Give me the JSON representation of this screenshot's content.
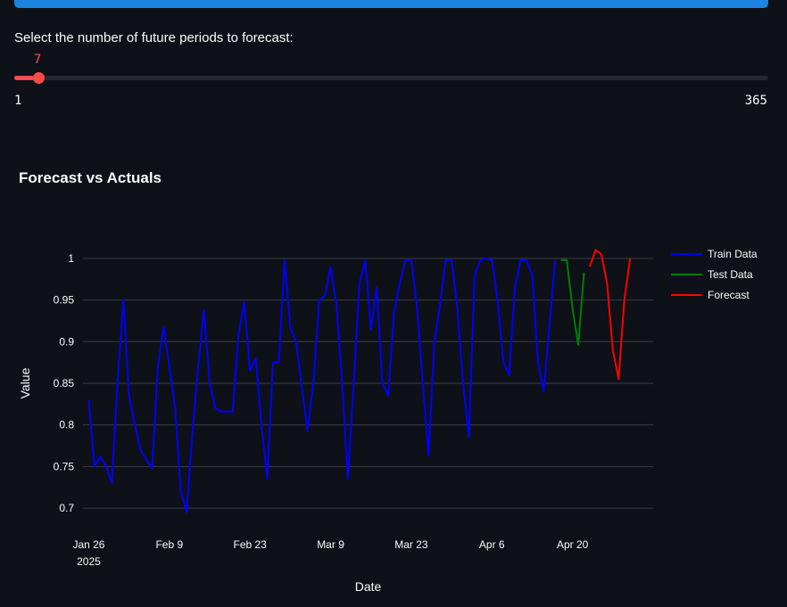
{
  "slider": {
    "label": "Select the number of future periods to forecast:",
    "value": 7,
    "min": 1,
    "max": 365,
    "min_label": "1",
    "max_label": "365",
    "value_label": "7"
  },
  "chart_title": "Forecast vs Actuals",
  "colors": {
    "train": "#0000ff",
    "test": "#008000",
    "forecast": "#ff0000",
    "accent": "#ff4b4b",
    "progress": "#1c83e1"
  },
  "chart_data": {
    "type": "line",
    "xlabel": "Date",
    "ylabel": "Value",
    "xlim": [
      "2025-01-25",
      "2025-05-04"
    ],
    "ylim": [
      0.668,
      1.032
    ],
    "yticks": [
      0.7,
      0.75,
      0.8,
      0.85,
      0.9,
      0.95,
      1
    ],
    "ytick_labels": [
      "0.7",
      "0.75",
      "0.8",
      "0.85",
      "0.9",
      "0.95",
      "1"
    ],
    "xticks": [
      "2025-01-26",
      "2025-02-09",
      "2025-02-23",
      "2025-03-09",
      "2025-03-23",
      "2025-04-06",
      "2025-04-20"
    ],
    "xtick_labels": [
      "Jan 26",
      "Feb 9",
      "Feb 23",
      "Mar 9",
      "Mar 23",
      "Apr 6",
      "Apr 20"
    ],
    "xtick_year": "2025",
    "grid": true,
    "legend_position": "top-right",
    "series": [
      {
        "name": "Train Data",
        "color": "#0000ff",
        "x": [
          "2025-01-26",
          "2025-01-27",
          "2025-01-28",
          "2025-01-29",
          "2025-01-30",
          "2025-01-31",
          "2025-02-01",
          "2025-02-02",
          "2025-02-03",
          "2025-02-04",
          "2025-02-05",
          "2025-02-06",
          "2025-02-07",
          "2025-02-08",
          "2025-02-09",
          "2025-02-10",
          "2025-02-11",
          "2025-02-12",
          "2025-02-13",
          "2025-02-14",
          "2025-02-15",
          "2025-02-16",
          "2025-02-17",
          "2025-02-18",
          "2025-02-19",
          "2025-02-20",
          "2025-02-21",
          "2025-02-22",
          "2025-02-23",
          "2025-02-24",
          "2025-02-25",
          "2025-02-26",
          "2025-02-27",
          "2025-02-28",
          "2025-03-01",
          "2025-03-02",
          "2025-03-03",
          "2025-03-04",
          "2025-03-05",
          "2025-03-06",
          "2025-03-07",
          "2025-03-08",
          "2025-03-09",
          "2025-03-10",
          "2025-03-11",
          "2025-03-12",
          "2025-03-13",
          "2025-03-14",
          "2025-03-15",
          "2025-03-16",
          "2025-03-17",
          "2025-03-18",
          "2025-03-19",
          "2025-03-20",
          "2025-03-21",
          "2025-03-22",
          "2025-03-23",
          "2025-03-24",
          "2025-03-25",
          "2025-03-26",
          "2025-03-27",
          "2025-03-28",
          "2025-03-29",
          "2025-03-30",
          "2025-03-31",
          "2025-04-01",
          "2025-04-02",
          "2025-04-03",
          "2025-04-04",
          "2025-04-05",
          "2025-04-06",
          "2025-04-07",
          "2025-04-08",
          "2025-04-09",
          "2025-04-10",
          "2025-04-11",
          "2025-04-12",
          "2025-04-13",
          "2025-04-14",
          "2025-04-15",
          "2025-04-16",
          "2025-04-17"
        ],
        "values": [
          0.83,
          0.75,
          0.762,
          0.75,
          0.73,
          0.85,
          0.95,
          0.835,
          0.8,
          0.77,
          0.758,
          0.748,
          0.87,
          0.918,
          0.87,
          0.82,
          0.72,
          0.695,
          0.79,
          0.87,
          0.938,
          0.85,
          0.82,
          0.816,
          0.816,
          0.816,
          0.908,
          0.948,
          0.865,
          0.88,
          0.8,
          0.735,
          0.875,
          0.875,
          0.998,
          0.917,
          0.9,
          0.845,
          0.793,
          0.85,
          0.949,
          0.955,
          0.99,
          0.945,
          0.85,
          0.735,
          0.85,
          0.97,
          0.998,
          0.915,
          0.965,
          0.85,
          0.835,
          0.935,
          0.97,
          0.998,
          0.998,
          0.94,
          0.85,
          0.763,
          0.898,
          0.945,
          0.998,
          0.998,
          0.94,
          0.85,
          0.785,
          0.98,
          0.998,
          1.0,
          0.998,
          0.95,
          0.875,
          0.86,
          0.965,
          0.998,
          0.998,
          0.98,
          0.875,
          0.84,
          0.92,
          0.998
        ]
      },
      {
        "name": "Test Data",
        "color": "#008000",
        "x": [
          "2025-04-18",
          "2025-04-19",
          "2025-04-20",
          "2025-04-21",
          "2025-04-22"
        ],
        "values": [
          0.998,
          0.998,
          0.94,
          0.896,
          0.983
        ]
      },
      {
        "name": "Forecast",
        "color": "#ff0000",
        "x": [
          "2025-04-23",
          "2025-04-24",
          "2025-04-25",
          "2025-04-26",
          "2025-04-27",
          "2025-04-28",
          "2025-04-29",
          "2025-04-30"
        ],
        "values": [
          0.99,
          1.01,
          1.005,
          0.97,
          0.89,
          0.855,
          0.95,
          1.0
        ]
      }
    ]
  }
}
